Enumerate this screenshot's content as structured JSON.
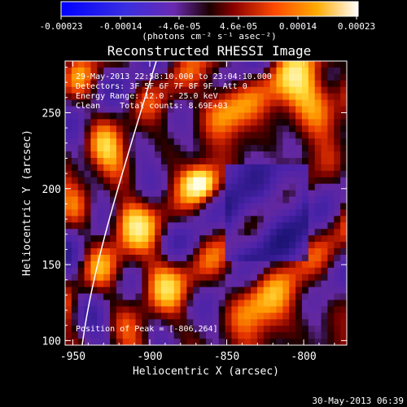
{
  "title": "Reconstructed RHESSI Image",
  "colorbar": {
    "tick_labels": [
      "-0.00023",
      "-0.00014",
      "-4.6e-05",
      "4.6e-05",
      "0.00014",
      "0.00023"
    ],
    "unit_label": "(photons cm⁻² s⁻¹ asec⁻²)"
  },
  "annotations": {
    "time_range": "29-May-2013 22:58:10.000 to 23:04:10.000",
    "detectors": "Detectors: 3F 5F 6F 7F 8F 9F, Att 0",
    "energy_range": "Energy Range: 12.0 - 25.0 keV",
    "clean_counts": "Clean    Total counts: 8.69E+03",
    "peak": "Position of Peak = [-806,264]"
  },
  "axes": {
    "xlabel": "Heliocentric X (arcsec)",
    "ylabel": "Heliocentric Y (arcsec)",
    "x_ticks": [
      "-950",
      "-900",
      "-850",
      "-800"
    ],
    "y_ticks": [
      "100",
      "150",
      "200",
      "250"
    ],
    "x_range": [
      -955,
      -772
    ],
    "y_range": [
      97,
      284
    ]
  },
  "footer_timestamp": "30-May-2013 06:39",
  "colors": {
    "limb": "#ffffff",
    "axes": "#ffffff",
    "background": "#000000"
  }
}
